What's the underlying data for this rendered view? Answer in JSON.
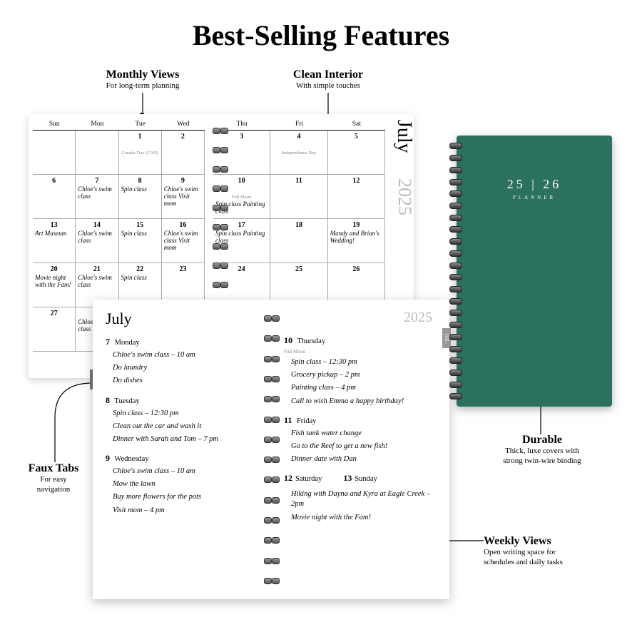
{
  "title": "Best-Selling Features",
  "colors": {
    "cover_bg": "#2c7060",
    "cover_text": "#ffffff",
    "year_gray": "#bbbbbb",
    "tab_bg": "#777777"
  },
  "callouts": {
    "monthly": {
      "title": "Monthly Views",
      "sub": "For long-term planning"
    },
    "clean": {
      "title": "Clean Interior",
      "sub": "With simple touches"
    },
    "faux": {
      "title": "Faux Tabs",
      "sub": "For easy\nnavigation"
    },
    "durable": {
      "title": "Durable",
      "sub": "Thick, luxe covers with\nstrong twin-wire binding"
    },
    "weekly": {
      "title": "Weekly Views",
      "sub": "Open writing space for\nschedules and daily tasks"
    }
  },
  "monthly": {
    "month": "July",
    "year": "2025",
    "left_headers": [
      "Sun",
      "Mon",
      "Tue",
      "Wed"
    ],
    "right_headers": [
      "Thu",
      "Fri",
      "Sat"
    ],
    "left_rows": [
      [
        {
          "n": "",
          "note": ""
        },
        {
          "n": "",
          "note": ""
        },
        {
          "n": "1",
          "hol": "Canada Day (CAN)"
        },
        {
          "n": "2",
          "note": ""
        }
      ],
      [
        {
          "n": "6",
          "note": ""
        },
        {
          "n": "7",
          "note": "Chloe's swim class"
        },
        {
          "n": "8",
          "note": "Spin class"
        },
        {
          "n": "9",
          "note": "Chloe's swim class\nVisit mom"
        }
      ],
      [
        {
          "n": "13",
          "note": "Art Museum"
        },
        {
          "n": "14",
          "note": "Chloe's swim class"
        },
        {
          "n": "15",
          "note": "Spin class"
        },
        {
          "n": "16",
          "note": "Chloe's swim class\nVisit mom"
        }
      ],
      [
        {
          "n": "20",
          "note": "Movie night with the Fam!"
        },
        {
          "n": "21",
          "note": "Chloe's swim class"
        },
        {
          "n": "22",
          "note": "Spin class"
        },
        {
          "n": "23",
          "note": ""
        }
      ],
      [
        {
          "n": "27",
          "note": ""
        },
        {
          "n": "28",
          "note": "Chloe's swim class"
        },
        {
          "n": "",
          "note": ""
        },
        {
          "n": "",
          "note": ""
        }
      ]
    ],
    "right_rows": [
      [
        {
          "n": "3",
          "note": ""
        },
        {
          "n": "4",
          "hol": "Independence Day"
        },
        {
          "n": "5",
          "note": ""
        }
      ],
      [
        {
          "n": "10",
          "note": "Spin class\nPainting class",
          "sub": "Full Moon"
        },
        {
          "n": "11",
          "note": ""
        },
        {
          "n": "12",
          "note": ""
        }
      ],
      [
        {
          "n": "17",
          "note": "Spin class\nPainting class"
        },
        {
          "n": "18",
          "note": ""
        },
        {
          "n": "19",
          "note": "Mandy and Brian's Wedding!"
        }
      ],
      [
        {
          "n": "24",
          "note": ""
        },
        {
          "n": "25",
          "note": ""
        },
        {
          "n": "26",
          "note": ""
        }
      ],
      [
        {
          "n": "",
          "note": ""
        },
        {
          "n": "",
          "note": ""
        },
        {
          "n": "",
          "note": ""
        }
      ]
    ],
    "tab_label": "JUL"
  },
  "weekly": {
    "month": "July",
    "year": "2025",
    "tab_label": "JUL",
    "left": [
      {
        "n": "7",
        "day": "Monday",
        "entries": [
          "Chloe's swim class – 10 am",
          "Do laundry",
          "Do dishes"
        ]
      },
      {
        "n": "8",
        "day": "Tuesday",
        "entries": [
          "Spin class – 12:30 pm",
          "Clean out the car and wash it",
          "Dinner with Sarah and Tom – 7 pm"
        ]
      },
      {
        "n": "9",
        "day": "Wednesday",
        "entries": [
          "Chloe's swim class – 10 am",
          "Mow the lawn",
          "Buy more flowers for the pots",
          "Visit mom – 4 pm"
        ]
      }
    ],
    "right": [
      {
        "n": "10",
        "day": "Thursday",
        "sub": "Full Moon",
        "entries": [
          "Spin class – 12:30 pm",
          "Grocery pickup – 2 pm",
          "Painting class – 4 pm",
          "Call to wish Emma a happy birthday!"
        ]
      },
      {
        "n": "11",
        "day": "Friday",
        "entries": [
          "Fish tank water change",
          "Go to the Reef to get a new fish!",
          "Dinner date with Dan"
        ]
      }
    ],
    "sat": {
      "n": "12",
      "day": "Saturday",
      "entries": [
        "Hiking with Dayna and Kyra at Eagle Creek – 2pm",
        "Movie night with the Fam!"
      ]
    },
    "sun": {
      "n": "13",
      "day": "Sunday"
    }
  },
  "cover": {
    "years": "25 | 26",
    "label": "PLANNER"
  }
}
